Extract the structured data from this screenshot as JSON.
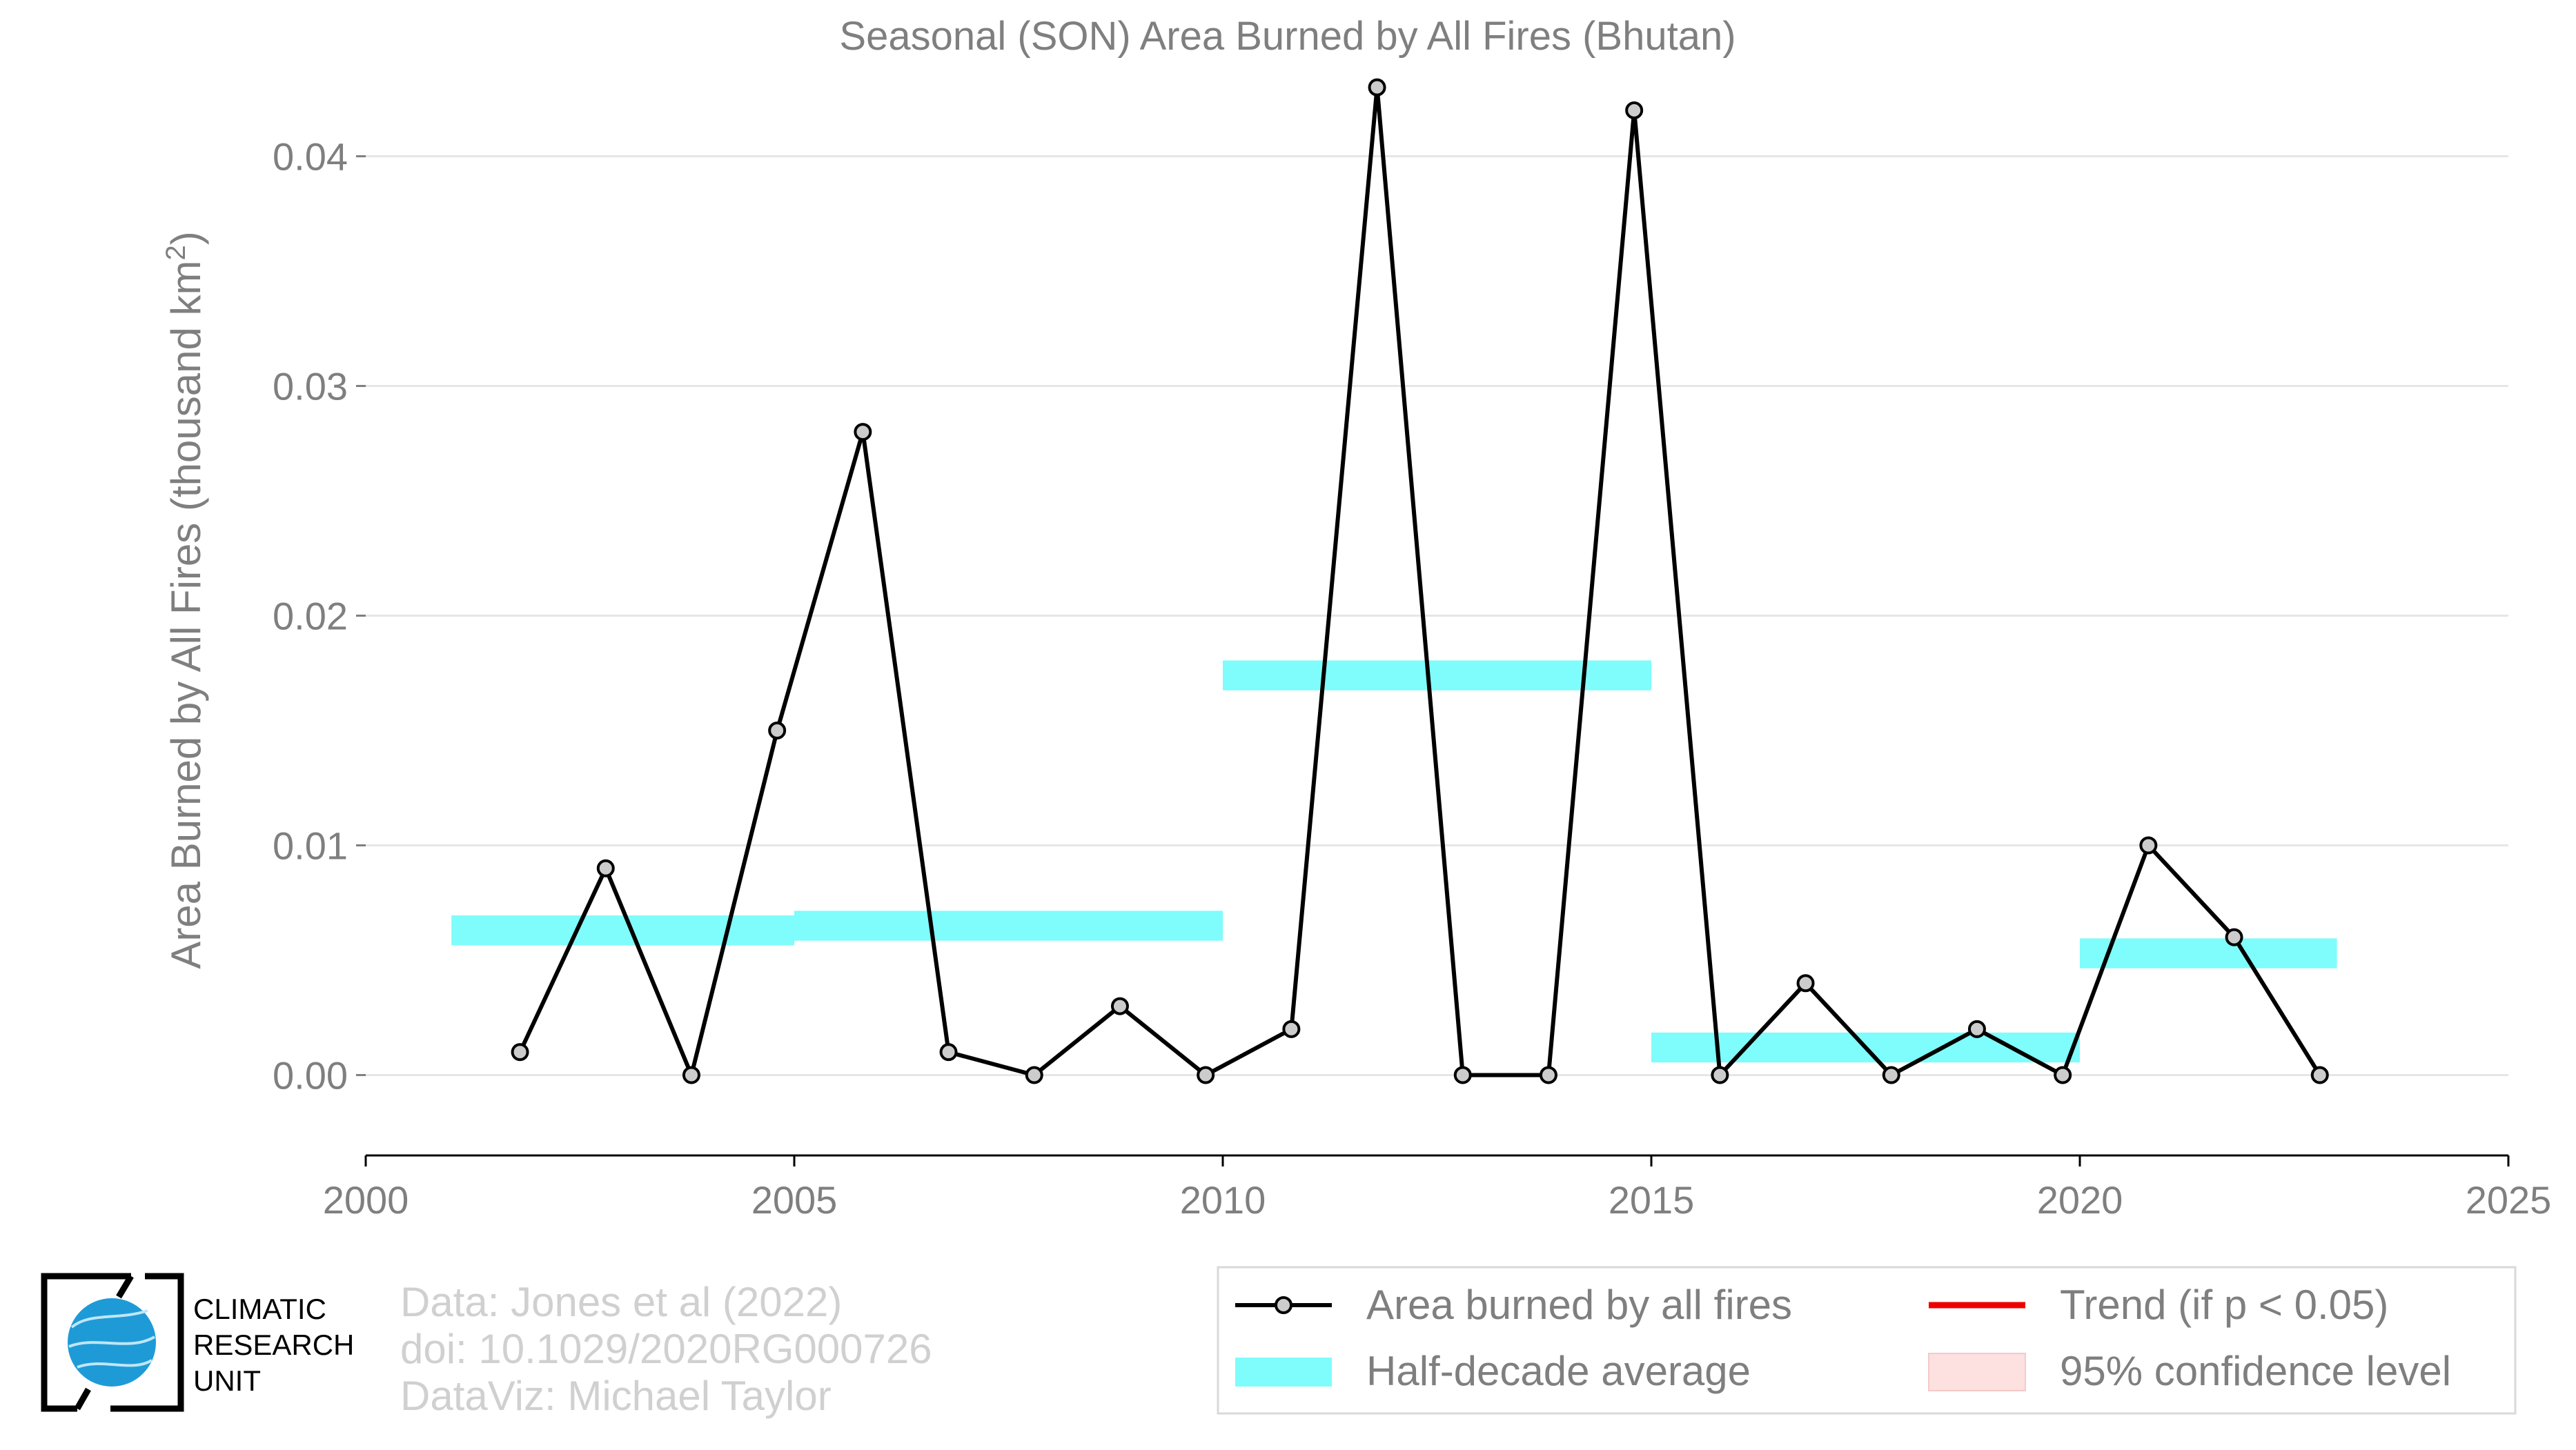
{
  "chart_data": {
    "type": "line",
    "title": "Seasonal (SON) Area Burned by All Fires (Bhutan)",
    "xlabel": "",
    "ylabel": "Area Burned by All Fires (thousand km",
    "ylabel_sup": "2",
    "ylabel_close": ")",
    "xlim": [
      2000,
      2025
    ],
    "ylim": [
      -0.0035,
      0.0435
    ],
    "x_ticks": [
      2000,
      2005,
      2010,
      2015,
      2020,
      2025
    ],
    "y_ticks": [
      0.0,
      0.01,
      0.02,
      0.03,
      0.04
    ],
    "y_tick_labels": [
      "0.00",
      "0.01",
      "0.02",
      "0.03",
      "0.04"
    ],
    "grid": "horizontal",
    "series": [
      {
        "name": "Area burned by all fires",
        "color": "#000000",
        "marker_fill": "#cccccc",
        "x": [
          2001.8,
          2002.8,
          2003.8,
          2004.8,
          2005.8,
          2006.8,
          2007.8,
          2008.8,
          2009.8,
          2010.8,
          2011.8,
          2012.8,
          2013.8,
          2014.8,
          2015.8,
          2016.8,
          2017.8,
          2018.8,
          2019.8,
          2020.8,
          2021.8,
          2022.8
        ],
        "y": [
          0.001,
          0.009,
          0.0,
          0.015,
          0.028,
          0.001,
          0.0,
          0.003,
          0.0,
          0.002,
          0.043,
          0.0,
          0.0,
          0.042,
          0.0,
          0.004,
          0.0,
          0.002,
          0.0,
          0.01,
          0.006,
          0.0
        ]
      }
    ],
    "half_decade_average": {
      "name": "Half-decade average",
      "color": "#7ffcfc",
      "segments": [
        {
          "x0": 2001,
          "x1": 2005,
          "y": 0.0063
        },
        {
          "x0": 2005,
          "x1": 2010,
          "y": 0.0065
        },
        {
          "x0": 2010,
          "x1": 2015,
          "y": 0.0174
        },
        {
          "x0": 2015,
          "x1": 2020,
          "y": 0.0012
        },
        {
          "x0": 2020,
          "x1": 2023,
          "y": 0.0053
        }
      ]
    },
    "legend": {
      "placement": "bottom-right",
      "entries": [
        {
          "label": "Area burned by all fires",
          "kind": "line-marker",
          "color": "#000000"
        },
        {
          "label": "Trend (if p < 0.05)",
          "kind": "line",
          "color": "#ee0000"
        },
        {
          "label": "Half-decade average",
          "kind": "band",
          "color": "#7ffcfc"
        },
        {
          "label": "95% confidence level",
          "kind": "box",
          "color": "#fde0e0"
        }
      ]
    }
  },
  "logo": {
    "lines": [
      "CLIMATIC",
      "RESEARCH",
      "UNIT"
    ]
  },
  "credits": {
    "lines": [
      "Data: Jones et al (2022)",
      "doi: 10.1029/2020RG000726",
      "DataViz: Michael Taylor"
    ]
  },
  "colors": {
    "text_gray": "#7f7f7f",
    "credit_gray": "#d0d0d0",
    "grid": "#e6e6e6",
    "logo_blue": "#1e9bd7"
  }
}
